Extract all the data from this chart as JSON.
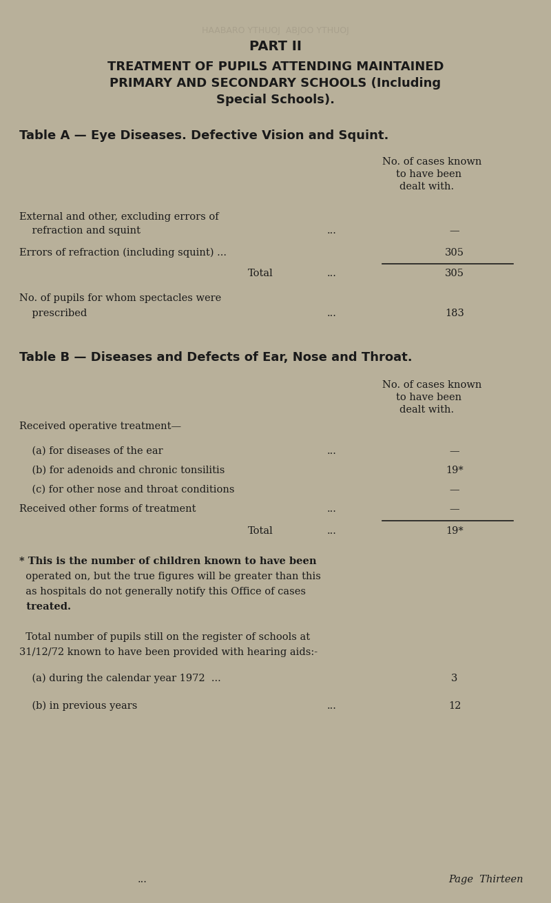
{
  "bg_color": "#b8b09a",
  "text_color": "#1a1a1a",
  "page_title": "PART II",
  "main_title_line1": "TREATMENT OF PUPILS ATTENDING MAINTAINED",
  "main_title_line2": "PRIMARY AND SECONDARY SCHOOLS (Including",
  "main_title_line3": "Special Schools).",
  "table_a_heading": "Table A — Eye Diseases. Defective Vision and Squint.",
  "col_header_line1": "No. of cases known",
  "col_header_line2": "to have been",
  "col_header_line3": "dealt with.",
  "row1_label1": "External and other, excluding errors of",
  "row1_label2": "    refraction and squint",
  "row1_dots": "...",
  "row1_value": "—",
  "row2_label": "Errors of refraction (including squint) ...",
  "row2_value": "305",
  "total1_label": "Total",
  "total1_dots": "...",
  "total1_value": "305",
  "spectacles_label1": "No. of pupils for whom spectacles were",
  "spectacles_label2": "    prescribed",
  "spectacles_dots": "...",
  "spectacles_value": "183",
  "table_b_heading": "Table B — Diseases and Defects of Ear, Nose and Throat.",
  "col_b_header_line1": "No. of cases known",
  "col_b_header_line2": "to have been",
  "col_b_header_line3": "dealt with.",
  "recv_op_label": "Received operative treatment—",
  "row_a_label": "    (a) for diseases of the ear",
  "row_a_dots": "...",
  "row_a_value": "—",
  "row_b_label": "    (b) for adenoids and chronic tonsilitis",
  "row_b_value": "19*",
  "row_c_label": "    (c) for other nose and throat conditions",
  "row_c_value": "—",
  "recv_other_label": "Received other forms of treatment",
  "recv_other_dots": "...",
  "recv_other_value": "—",
  "total2_label": "Total",
  "total2_dots": "...",
  "total2_value": "19*",
  "footnote_star": "* This is the number of children known to have been",
  "footnote_line2": "  operated on, but the true figures will be greater than this",
  "footnote_line3": "  as hospitals do not generally notify this Office of cases",
  "footnote_line4": "  treated.",
  "hearing_intro1": "  Total number of pupils still on the register of schools at",
  "hearing_intro2": "31/12/72 known to have been provided with hearing aids:-",
  "hearing_a_label": "    (a) during the calendar year 1972  ...",
  "hearing_a_value": "3",
  "hearing_b_label": "    (b) in previous years",
  "hearing_b_dots": "...",
  "hearing_b_value": "12",
  "footer_dots": "...",
  "page_label": "Page  Thirteen",
  "watermark_text": "HAABARO YTHUOJ  ABJOO YTHUOJ"
}
